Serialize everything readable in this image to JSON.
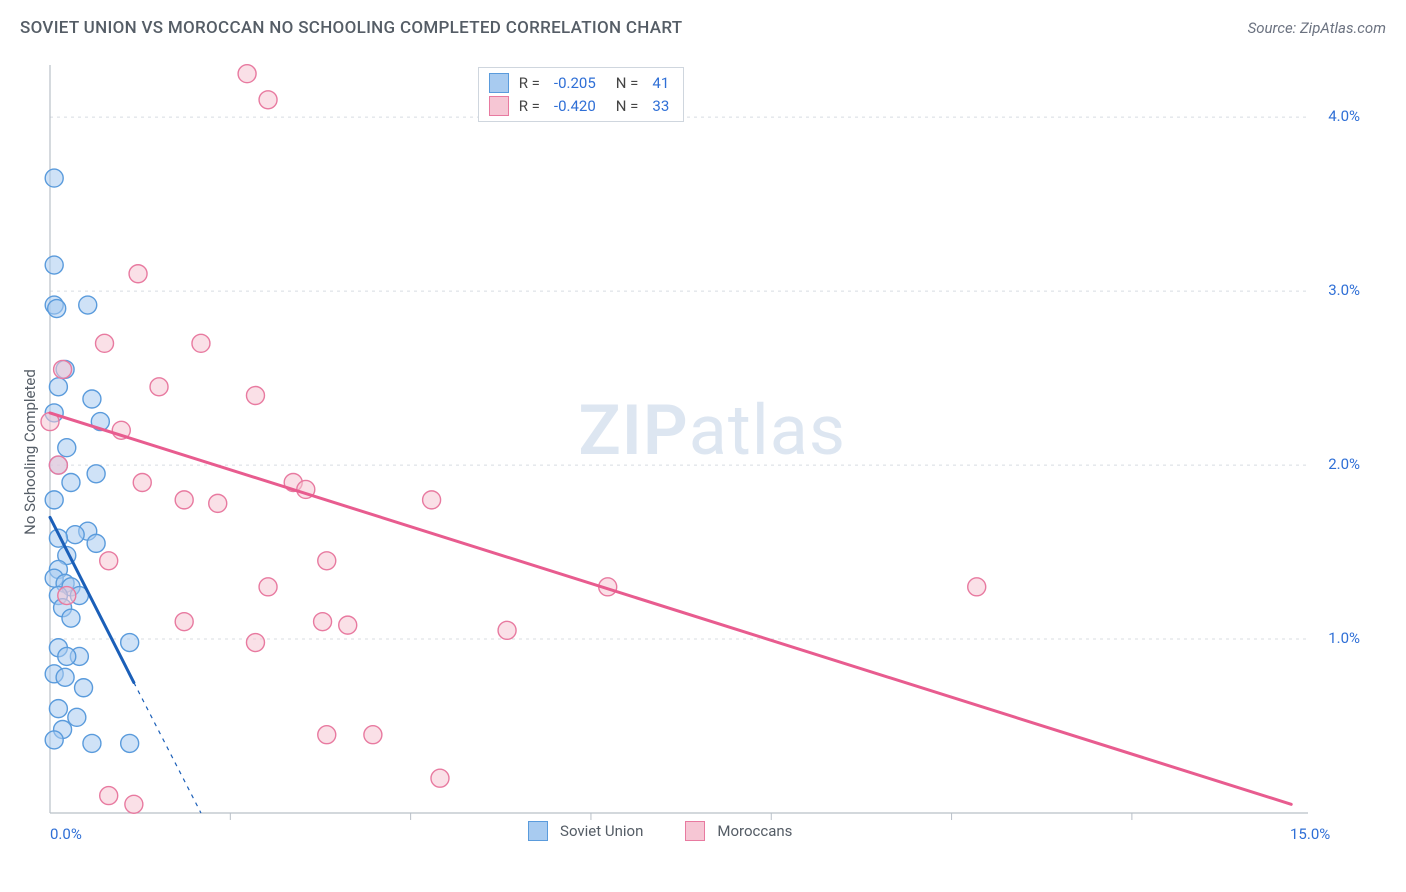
{
  "title": "SOVIET UNION VS MOROCCAN NO SCHOOLING COMPLETED CORRELATION CHART",
  "source": "Source: ZipAtlas.com",
  "ylabel": "No Schooling Completed",
  "watermark_bold": "ZIP",
  "watermark_light": "atlas",
  "chart": {
    "type": "scatter",
    "background_color": "#ffffff",
    "grid_color": "#d8dce2",
    "grid_dash": "3,4",
    "axis_line_color": "#b9c0c8",
    "xlim": [
      0,
      15
    ],
    "ylim": [
      0,
      4.3
    ],
    "x_ticks": [
      0,
      15
    ],
    "x_tick_labels": [
      "0.0%",
      "15.0%"
    ],
    "y_ticks": [
      0,
      1.0,
      2.0,
      3.0,
      4.0
    ],
    "y_tick_labels": [
      "",
      "1.0%",
      "2.0%",
      "3.0%",
      "4.0%"
    ],
    "x_minor_ticks": [
      2.15,
      4.3,
      6.45,
      8.6,
      10.75,
      12.9
    ],
    "label_fontsize": 15,
    "label_color": "#2f6fd6",
    "marker_radius": 9,
    "marker_stroke_width": 1.4,
    "trend_line_width": 3,
    "dashed_line_width": 1.2,
    "series": {
      "soviet": {
        "label": "Soviet Union",
        "fill": "#a8cbf0",
        "stroke": "#5a9bdc",
        "trend_color": "#1b5fb8",
        "R": "-0.205",
        "N": "41",
        "trend": {
          "x1": 0.0,
          "y1": 1.7,
          "x2": 1.0,
          "y2": 0.75
        },
        "trend_dashed": {
          "x1": 1.0,
          "y1": 0.75,
          "x2": 1.8,
          "y2": 0.0
        },
        "points": [
          [
            0.05,
            3.65
          ],
          [
            0.05,
            3.15
          ],
          [
            0.45,
            2.92
          ],
          [
            0.05,
            2.92
          ],
          [
            0.08,
            2.9
          ],
          [
            0.18,
            2.55
          ],
          [
            0.1,
            2.45
          ],
          [
            0.5,
            2.38
          ],
          [
            0.05,
            2.3
          ],
          [
            0.6,
            2.25
          ],
          [
            0.2,
            2.1
          ],
          [
            0.1,
            2.0
          ],
          [
            0.55,
            1.95
          ],
          [
            0.25,
            1.9
          ],
          [
            0.05,
            1.8
          ],
          [
            0.45,
            1.62
          ],
          [
            0.3,
            1.6
          ],
          [
            0.1,
            1.58
          ],
          [
            0.55,
            1.55
          ],
          [
            0.2,
            1.48
          ],
          [
            0.1,
            1.4
          ],
          [
            0.05,
            1.35
          ],
          [
            0.18,
            1.32
          ],
          [
            0.25,
            1.3
          ],
          [
            0.1,
            1.25
          ],
          [
            0.35,
            1.25
          ],
          [
            0.15,
            1.18
          ],
          [
            0.25,
            1.12
          ],
          [
            0.1,
            0.95
          ],
          [
            0.95,
            0.98
          ],
          [
            0.35,
            0.9
          ],
          [
            0.2,
            0.9
          ],
          [
            0.05,
            0.8
          ],
          [
            0.18,
            0.78
          ],
          [
            0.4,
            0.72
          ],
          [
            0.1,
            0.6
          ],
          [
            0.32,
            0.55
          ],
          [
            0.15,
            0.48
          ],
          [
            0.05,
            0.42
          ],
          [
            0.5,
            0.4
          ],
          [
            0.95,
            0.4
          ]
        ]
      },
      "moroccan": {
        "label": "Moroccans",
        "fill": "#f6c6d4",
        "stroke": "#e87aa0",
        "trend_color": "#e85c8f",
        "R": "-0.420",
        "N": "33",
        "trend": {
          "x1": 0.0,
          "y1": 2.3,
          "x2": 14.8,
          "y2": 0.05
        },
        "points": [
          [
            2.35,
            4.25
          ],
          [
            2.6,
            4.1
          ],
          [
            1.05,
            3.1
          ],
          [
            0.65,
            2.7
          ],
          [
            1.8,
            2.7
          ],
          [
            0.15,
            2.55
          ],
          [
            1.3,
            2.45
          ],
          [
            2.45,
            2.4
          ],
          [
            0.0,
            2.25
          ],
          [
            0.85,
            2.2
          ],
          [
            0.1,
            2.0
          ],
          [
            1.1,
            1.9
          ],
          [
            2.9,
            1.9
          ],
          [
            3.05,
            1.86
          ],
          [
            4.55,
            1.8
          ],
          [
            1.6,
            1.8
          ],
          [
            2.0,
            1.78
          ],
          [
            0.7,
            1.45
          ],
          [
            3.3,
            1.45
          ],
          [
            2.6,
            1.3
          ],
          [
            6.65,
            1.3
          ],
          [
            11.05,
            1.3
          ],
          [
            0.2,
            1.25
          ],
          [
            1.6,
            1.1
          ],
          [
            3.25,
            1.1
          ],
          [
            3.55,
            1.08
          ],
          [
            5.45,
            1.05
          ],
          [
            2.45,
            0.98
          ],
          [
            3.3,
            0.45
          ],
          [
            3.85,
            0.45
          ],
          [
            4.65,
            0.2
          ],
          [
            0.7,
            0.1
          ],
          [
            1.0,
            0.05
          ]
        ]
      }
    }
  },
  "legend_top": {
    "r_label": "R =",
    "n_label": "N ="
  }
}
